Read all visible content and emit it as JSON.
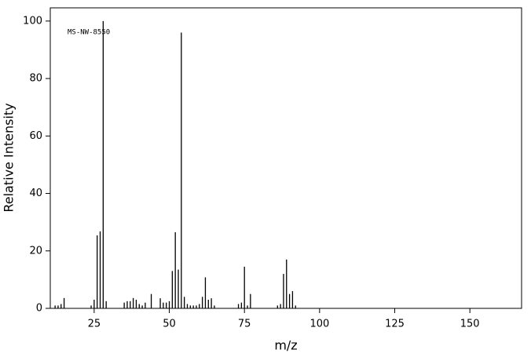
{
  "chart_data": {
    "type": "stem",
    "annotation": "MS-NW-8550",
    "x_label": "m/z",
    "y_label": "Relative Intensity",
    "x": [
      12,
      13,
      14,
      15,
      24,
      25,
      26,
      27,
      28,
      29,
      35,
      36,
      37,
      38,
      39,
      40,
      41,
      42,
      44,
      47,
      48,
      49,
      50,
      51,
      52,
      53,
      54,
      55,
      56,
      57,
      58,
      59,
      60,
      61,
      62,
      63,
      64,
      65,
      73,
      74,
      75,
      76,
      77,
      86,
      87,
      88,
      89,
      90,
      91,
      92
    ],
    "values": [
      1,
      1,
      1.5,
      3.6,
      1,
      3,
      25.4,
      26.8,
      100,
      2.5,
      2,
      2.5,
      2.5,
      3.6,
      3,
      1.5,
      1,
      2,
      5,
      3.5,
      2,
      2,
      2.5,
      13,
      26.5,
      13.5,
      96,
      4,
      1.5,
      1,
      1,
      1,
      1.5,
      4,
      10.8,
      3,
      3.5,
      1,
      1.5,
      2,
      14.5,
      1,
      5,
      1,
      1.5,
      12,
      17,
      5,
      6,
      1
    ],
    "color": "#000000",
    "xlim": [
      10.4,
      167.2
    ],
    "ylim": [
      0,
      104.6
    ],
    "xticks": [
      25,
      50,
      75,
      100,
      125,
      150
    ],
    "yticks": [
      0,
      20,
      40,
      60,
      80,
      100
    ]
  }
}
